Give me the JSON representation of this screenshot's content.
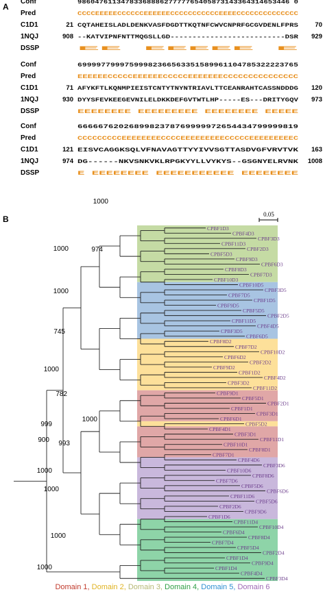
{
  "panel_a": {
    "label": "A",
    "blocks": [
      {
        "rows": [
          {
            "name": "Conf",
            "num_left": "",
            "text": "9860476113478336888627777765405873143364314653446 0",
            "num_right": ""
          },
          {
            "name": "Pred",
            "num_left": "",
            "text": "CCCCEEEEECCCCCCEEEEEECCCCCCCCCCCEEEECCCCCCCCCCCCCC",
            "num_right": ""
          },
          {
            "name": "C1D1",
            "num_left": "21",
            "text": "CQTAHEISLADLDENKVASFDGDTTKQTNFCWVCNPRFGCGVDENLFPRS",
            "num_right": "70"
          },
          {
            "name": "1NQJ",
            "num_left": "908",
            "text": "--KATVIPNFNTTMQGSLLGD--------------------------DSR",
            "num_right": "929"
          },
          {
            "name": "DSSP",
            "num_left": "",
            "text": "EE      EEEEE                               E",
            "num_right": ""
          }
        ]
      },
      {
        "rows": [
          {
            "name": "Conf",
            "num_left": "",
            "text": "69999779997599982366563351589961104785322223765",
            "num_right": ""
          },
          {
            "name": "Pred",
            "num_left": "",
            "text": "EEEEEECCCCCEEEEEECCCCCEEEEEEECCCCCCCCCCCCCCC",
            "num_right": ""
          },
          {
            "name": "C1D1",
            "num_left": "71",
            "text": "AFYKFTLKQNMPIEISTCNTYTNYNTRIAVLTTCEANRAHTCASSNDDDG",
            "num_right": "120"
          },
          {
            "name": "1NQJ",
            "num_left": "930",
            "text": "DYYSFEVKEEGEVNILELDKKDEFGVTWTLHP-----ES---DRITYGQV",
            "num_right": "973"
          },
          {
            "name": "DSSP",
            "num_left": "",
            "text": "EEEEEEEE   EEEEEEEEE     EEEEEEEE          EEEEE",
            "num_right": ""
          }
        ]
      },
      {
        "rows": [
          {
            "name": "Conf",
            "num_left": "",
            "text": "6666676202689982378769999972654434799999819",
            "num_right": ""
          },
          {
            "name": "Pred",
            "num_left": "",
            "text": "CCCCCCCCCEEEEEEEECCCCEEEEEEEEECCCCCEEEEEEEEEC",
            "num_right": ""
          },
          {
            "name": "C1D1",
            "num_left": "121",
            "text": "EISVCAGGKSQLVFNAVAGTTYYIVVSGTTASDVGFVRVTVK",
            "num_right": "163"
          },
          {
            "name": "1NQJ",
            "num_left": "974",
            "text": "DG------NKVSNKVKLRPGKYYLLVYKYS--GSGNYELRVNK",
            "num_right": "1008"
          },
          {
            "name": "DSSP",
            "num_left": "",
            "text": "E       EEEEEEEE   EEEEEEEEEEE   EEEEEEEE",
            "num_right": ""
          }
        ]
      }
    ]
  },
  "panel_b": {
    "label": "B",
    "scale_label": "0.05",
    "bootstrap": [
      "974",
      "1000",
      "1000",
      "1000",
      "745",
      "1000",
      "782",
      "1000",
      "999",
      "900",
      "993",
      "1000",
      "1000",
      "1000",
      "1000"
    ],
    "groups": [
      {
        "color": "#c5dba4",
        "leaves": [
          "CPBF1D3",
          "CPBF4D3",
          "CPBF3D3",
          "CPBF11D3",
          "CPBF2D3",
          "CPBF5D3",
          "CPBF9D3",
          "CPBF6D3",
          "CPBF8D3",
          "CPBF7D3",
          "CPBF10D3"
        ]
      },
      {
        "color": "#a8c4e2",
        "leaves": [
          "CPBF10D5",
          "CPBF3D5",
          "CPBF7D5",
          "CPBF1D5",
          "CPBF9D5",
          "CPBF5D5",
          "CPBF2D5",
          "CPBF11D5",
          "CPBF4D5",
          "CPBF3D5",
          "CPBF6D5"
        ]
      },
      {
        "color": "#fde09a",
        "leaves": [
          "CPBF8D2",
          "CPBF7D2",
          "CPBF10D2",
          "CPBF6D2",
          "CPBF2D2",
          "CPBF9D2",
          "CPBF1D2",
          "CPBF4D2",
          "CPBF3D2",
          "CPBF11D2"
        ]
      },
      {
        "color": "#e0a7a7",
        "leaves": [
          "CPBF9D1",
          "CPBF5D1",
          "CPBF2D1",
          "CPBF1D1",
          "CPBF3D1",
          "CPBF6D1"
        ]
      },
      {
        "color": "#fde09a",
        "leaves": [
          "CPBF5D2"
        ]
      },
      {
        "color": "#e0a7a7",
        "leaves": [
          "CPBF4D1",
          "CPBF3D1",
          "CPBF11D1",
          "CPBF10D1",
          "CPBF8D1",
          "CPBF7D1"
        ]
      },
      {
        "color": "#c9b8dc",
        "leaves": [
          "CPBF4D6",
          "CPBF3D6",
          "CPBF10D6",
          "CPBF8D6",
          "CPBF7D6",
          "CPBF5D6",
          "CPBF6D6",
          "CPBF11D6",
          "CPBF5D6",
          "CPBF2D6",
          "CPBF9D6",
          "CPBF1D6"
        ]
      },
      {
        "color": "#8ed4a8",
        "leaves": [
          "CPBF11D4",
          "CPBF10D4",
          "CPBF6D4",
          "CPBF8D4",
          "CPBF7D4",
          "CPBF5D4",
          "CPBF2D4",
          "CPBF1D4",
          "CPBF9D4",
          "CPBF1D4",
          "CPBF4D4",
          "CPBF3D4"
        ]
      }
    ],
    "legend": [
      {
        "label": "Domain 1,",
        "color": "#c0392b"
      },
      {
        "label": "Domain 2,",
        "color": "#e0b322"
      },
      {
        "label": "Domain 3,",
        "color": "#b5b874"
      },
      {
        "label": "Domain 4,",
        "color": "#2e9e44"
      },
      {
        "label": "Domain 5,",
        "color": "#2e8fd1"
      },
      {
        "label": "Domain 6",
        "color": "#9f68b5"
      }
    ]
  }
}
